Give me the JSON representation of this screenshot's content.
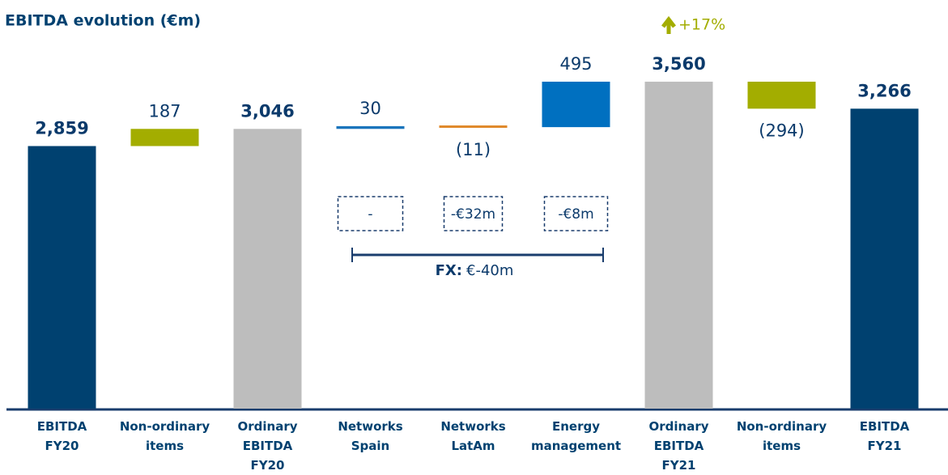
{
  "chart_data": {
    "type": "waterfall",
    "title": "EBITDA evolution (€m)",
    "categories": [
      "EBITDA FY20",
      "Non-ordinary items",
      "Ordinary EBITDA FY20",
      "Networks Spain",
      "Networks LatAm",
      "Energy management",
      "Ordinary EBITDA FY21",
      "Non-ordinary items",
      "EBITDA FY21"
    ],
    "values": [
      2859,
      187,
      3046,
      30,
      -11,
      495,
      3560,
      -294,
      3266
    ],
    "value_labels": [
      "2,859",
      "187",
      "3,046",
      "30",
      "(11)",
      "495",
      "3,560",
      "(294)",
      "3,266"
    ],
    "kinds": [
      "total",
      "delta",
      "total",
      "delta",
      "delta",
      "delta",
      "total",
      "delta",
      "total"
    ],
    "colors": [
      "#004170",
      "#a3ad00",
      "#bdbdbd",
      "#1b75bc",
      "#e08a2c",
      "#0070c0",
      "#bdbdbd",
      "#a3ad00",
      "#004170"
    ],
    "ylim": [
      0,
      4000
    ],
    "growth_annotation": "+17%",
    "fx_boxes": [
      "-",
      "-€32m",
      "-€8m"
    ],
    "fx_label": "FX:",
    "fx_value": "€-40m"
  }
}
